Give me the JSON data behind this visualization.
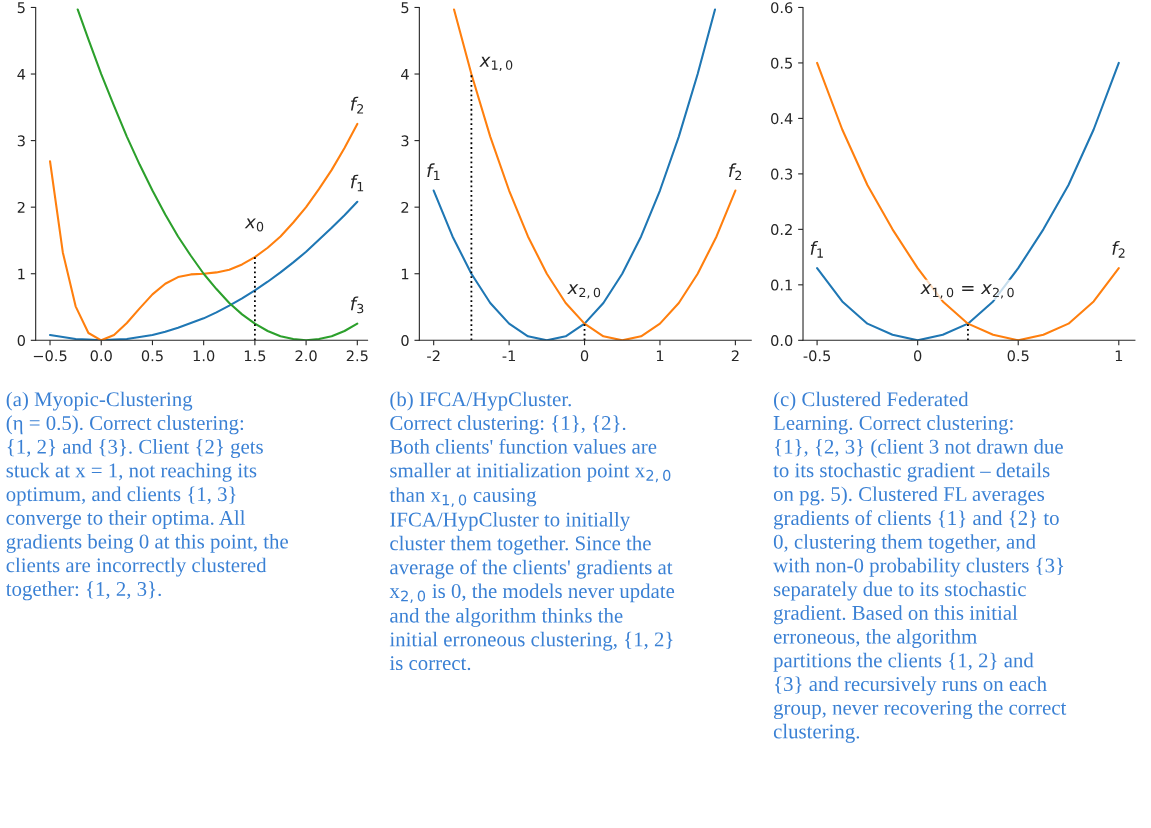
{
  "chart_data": [
    {
      "type": "line",
      "xlim": [
        -0.64,
        2.6
      ],
      "ylim": [
        0,
        5
      ],
      "xticks": [
        {
          "value": -0.5,
          "label": "−0.5"
        },
        {
          "value": 0,
          "label": "0.0"
        },
        0.5,
        {
          "value": 1,
          "label": "1.0"
        },
        1.5,
        {
          "value": 2,
          "label": "2.0"
        },
        2.5
      ],
      "yticks": [
        0,
        1,
        2,
        3,
        4,
        5
      ],
      "series": [
        {
          "name": "f$_{1}$",
          "color": "#1f77b4",
          "x": [
            -0.5,
            -0.375,
            -0.25,
            -0.125,
            0,
            0.125,
            0.25,
            0.375,
            0.5,
            0.625,
            0.75,
            0.875,
            1,
            1.125,
            1.25,
            1.375,
            1.5,
            1.625,
            1.75,
            1.875,
            2,
            2.125,
            2.25,
            2.375,
            2.5
          ],
          "values": [
            0.08,
            0.05,
            0.02,
            0.01,
            0,
            0.01,
            0.02,
            0.05,
            0.08,
            0.13,
            0.19,
            0.26,
            0.33,
            0.42,
            0.52,
            0.63,
            0.75,
            0.88,
            1.02,
            1.17,
            1.33,
            1.51,
            1.69,
            1.88,
            2.08
          ]
        },
        {
          "name": "f$_{2}$",
          "color": "#ff7f0e",
          "x": [
            -0.5,
            -0.375,
            -0.25,
            -0.125,
            0,
            0.125,
            0.25,
            0.375,
            0.5,
            0.625,
            0.75,
            0.875,
            1,
            1.125,
            1.25,
            1.375,
            1.5,
            1.625,
            1.75,
            1.875,
            2,
            2.125,
            2.25,
            2.375,
            2.5
          ],
          "values": [
            2.69,
            1.32,
            0.51,
            0.11,
            0,
            0.08,
            0.26,
            0.48,
            0.69,
            0.85,
            0.95,
            0.99,
            1,
            1.02,
            1.06,
            1.14,
            1.25,
            1.39,
            1.56,
            1.77,
            2,
            2.27,
            2.56,
            2.89,
            3.25
          ]
        },
        {
          "name": "f$_{3}$",
          "color": "#2ca02c",
          "x": [
            -0.23,
            -0.125,
            0,
            0.125,
            0.25,
            0.375,
            0.5,
            0.625,
            0.75,
            0.875,
            1,
            1.125,
            1.25,
            1.375,
            1.5,
            1.625,
            1.75,
            1.875,
            2,
            2.125,
            2.25,
            2.375,
            2.5
          ],
          "values": [
            4.97,
            4.52,
            4,
            3.52,
            3.06,
            2.64,
            2.25,
            1.89,
            1.56,
            1.27,
            1,
            0.77,
            0.56,
            0.39,
            0.25,
            0.14,
            0.06,
            0.02,
            0,
            0.02,
            0.06,
            0.14,
            0.25
          ]
        },
        {
          "color": "#000000",
          "line_style": "dotted",
          "x": [
            1.5,
            1.5
          ],
          "values": [
            0,
            1.25
          ]
        }
      ],
      "annotations": [
        {
          "text": "x$_{0}$",
          "x": 1.5,
          "y": 1.25
        },
        "(a) Myopic-Clustering\n(η = 0.5). Correct clustering:\n{1, 2} and {3}. Client {2} gets\nstuck at x = 1, not reaching its\noptimum, and clients {1, 3}\nconverge to their optima. All\ngradients being 0 at this point, the\nclients are incorrectly clustered\ntogether: {1, 2, 3}."
      ]
    },
    {
      "type": "line",
      "xlim": [
        -2.19,
        2.21
      ],
      "ylim": [
        0,
        5
      ],
      "xticks": [
        -2,
        -1,
        0,
        1,
        2
      ],
      "yticks": [
        0,
        1,
        2,
        3,
        4,
        5
      ],
      "series": [
        {
          "name": "f$_{1}$",
          "color": "#1f77b4",
          "x": [
            1.73,
            1.5,
            1.25,
            1,
            0.75,
            0.5,
            0.25,
            0,
            -0.25,
            -0.5,
            -0.75,
            -1,
            -1.25,
            -1.5,
            -1.75,
            -2
          ],
          "values": [
            4.97,
            4,
            3.06,
            2.25,
            1.56,
            1,
            0.56,
            0.25,
            0.06,
            0,
            0.06,
            0.25,
            0.56,
            1,
            1.56,
            2.25
          ]
        },
        {
          "name": "f$_{2}$",
          "color": "#ff7f0e",
          "x": [
            -1.73,
            -1.5,
            -1.25,
            -1,
            -0.75,
            -0.5,
            -0.25,
            0,
            0.25,
            0.5,
            0.75,
            1,
            1.25,
            1.5,
            1.75,
            2
          ],
          "values": [
            4.97,
            4,
            3.06,
            2.25,
            1.56,
            1,
            0.56,
            0.25,
            0.06,
            0,
            0.06,
            0.25,
            0.56,
            1,
            1.56,
            2.25
          ]
        },
        {
          "color": "#000000",
          "line_style": "dotted",
          "x": [
            -1.5,
            -1.5
          ],
          "values": [
            0,
            4
          ]
        },
        {
          "color": "#000000",
          "line_style": "dotted",
          "x": [
            0,
            0
          ],
          "values": [
            0,
            0.25
          ]
        }
      ],
      "annotations": [
        {
          "text": "x$_{1,0}$",
          "x": -1.5,
          "y": 4
        },
        {
          "text": "x$_{2,0}$",
          "x": 0,
          "y": 0.25
        },
        "(b) IFCA/HypCluster.\nCorrect clustering: {1}, {2}.\nBoth clients' function values are\nsmaller at initialization point x$_{2,0}$\nthan x$_{1,0}$ causing\nIFCA/HypCluster to initially\ncluster them together. Since the\naverage of the clients' gradients at\nx$_{2,0}$ is 0, the models never update\nand the algorithm thinks the\ninitial erroneous clustering, {1, 2}\nis correct."
      ]
    },
    {
      "type": "line",
      "xlim": [
        -0.57,
        1.08
      ],
      "ylim": [
        0,
        0.6
      ],
      "xticks": [
        -0.5,
        0,
        0.5,
        1
      ],
      "yticks": [
        {
          "value": 0,
          "label": "0.0"
        },
        0.1,
        0.2,
        0.3,
        0.4,
        0.5,
        0.6
      ],
      "series": [
        {
          "name": "f$_{1}$",
          "color": "#1f77b4",
          "x": [
            1,
            0.875,
            0.75,
            0.625,
            0.5,
            0.375,
            0.25,
            0.125,
            0,
            -0.125,
            -0.25,
            -0.375,
            -0.5
          ],
          "values": [
            0.5,
            0.38,
            0.28,
            0.2,
            0.13,
            0.07,
            0.03,
            0.01,
            0,
            0.01,
            0.03,
            0.07,
            0.13
          ]
        },
        {
          "name": "f$_{2}$",
          "color": "#ff7f0e",
          "x": [
            -0.5,
            -0.375,
            -0.25,
            -0.125,
            0,
            0.125,
            0.25,
            0.375,
            0.5,
            0.625,
            0.75,
            0.875,
            1
          ],
          "values": [
            0.5,
            0.38,
            0.28,
            0.2,
            0.13,
            0.07,
            0.03,
            0.01,
            0,
            0.01,
            0.03,
            0.07,
            0.13
          ]
        },
        {
          "color": "#000000",
          "line_style": "dotted",
          "x": [
            0.25,
            0.25
          ],
          "values": [
            0,
            0.03
          ]
        }
      ],
      "annotations": [
        {
          "text": "x$_{1,0}$ = x$_{2,0}$",
          "x": 0.25,
          "y": 0.03
        },
        "(c) Clustered Federated\nLearning. Correct clustering:\n{1}, {2, 3} (client 3 not drawn due\nto its stochastic gradient – details\non pg. 5). Clustered FL averages\ngradients of clients {1} and {2} to\n0, clustering them together, and\nwith non-0 probability clusters {3}\nseparately due to its stochastic\ngradient. Based on this initial\nerroneous, the algorithm\npartitions the clients {1, 2} and\n{3} and recursively runs on each\ngroup, never recovering the correct\nclustering."
      ]
    }
  ]
}
